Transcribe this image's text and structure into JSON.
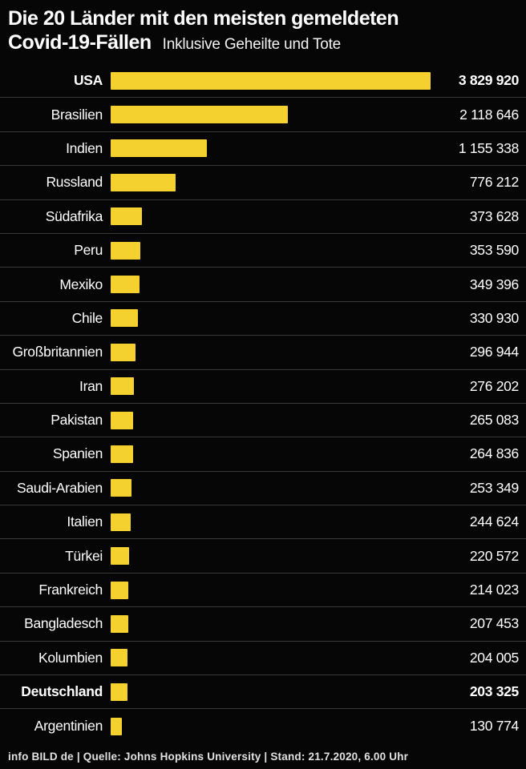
{
  "header": {
    "title_line1": "Die 20 Länder mit den meisten gemeldeten",
    "title_line2": "Covid-19-Fällen",
    "subtitle": "Inklusive Geheilte und Tote"
  },
  "chart_data": {
    "type": "bar",
    "orientation": "horizontal",
    "title": "Die 20 Länder mit den meisten gemeldeten Covid-19-Fällen",
    "subtitle": "Inklusive Geheilte und Tote",
    "xlim": [
      0,
      3829920
    ],
    "grid": false,
    "legend": "none",
    "bar_color": "#F5D130",
    "background_color": "#060606",
    "separator_color": "#3a3a3c",
    "categories": [
      "USA",
      "Brasilien",
      "Indien",
      "Russland",
      "Südafrika",
      "Peru",
      "Mexiko",
      "Chile",
      "Großbritannien",
      "Iran",
      "Pakistan",
      "Spanien",
      "Saudi-Arabien",
      "Italien",
      "Türkei",
      "Frankreich",
      "Bangladesch",
      "Kolumbien",
      "Deutschland",
      "Argentinien"
    ],
    "values": [
      3829920,
      2118646,
      1155338,
      776212,
      373628,
      353590,
      349396,
      330930,
      296944,
      276202,
      265083,
      264836,
      253349,
      244624,
      220572,
      214023,
      207453,
      204005,
      203325,
      130774
    ],
    "value_labels": [
      "3 829 920",
      "2 118 646",
      "1 155 338",
      "776 212",
      "373 628",
      "353 590",
      "349 396",
      "330 930",
      "296 944",
      "276 202",
      "265 083",
      "264 836",
      "253 349",
      "244 624",
      "220 572",
      "214 023",
      "207 453",
      "204 005",
      "203 325",
      "130 774"
    ],
    "bold_indices": [
      0,
      18
    ]
  },
  "footer": {
    "text": "info BILD de | Quelle: Johns Hopkins University | Stand: 21.7.2020, 6.00 Uhr"
  }
}
